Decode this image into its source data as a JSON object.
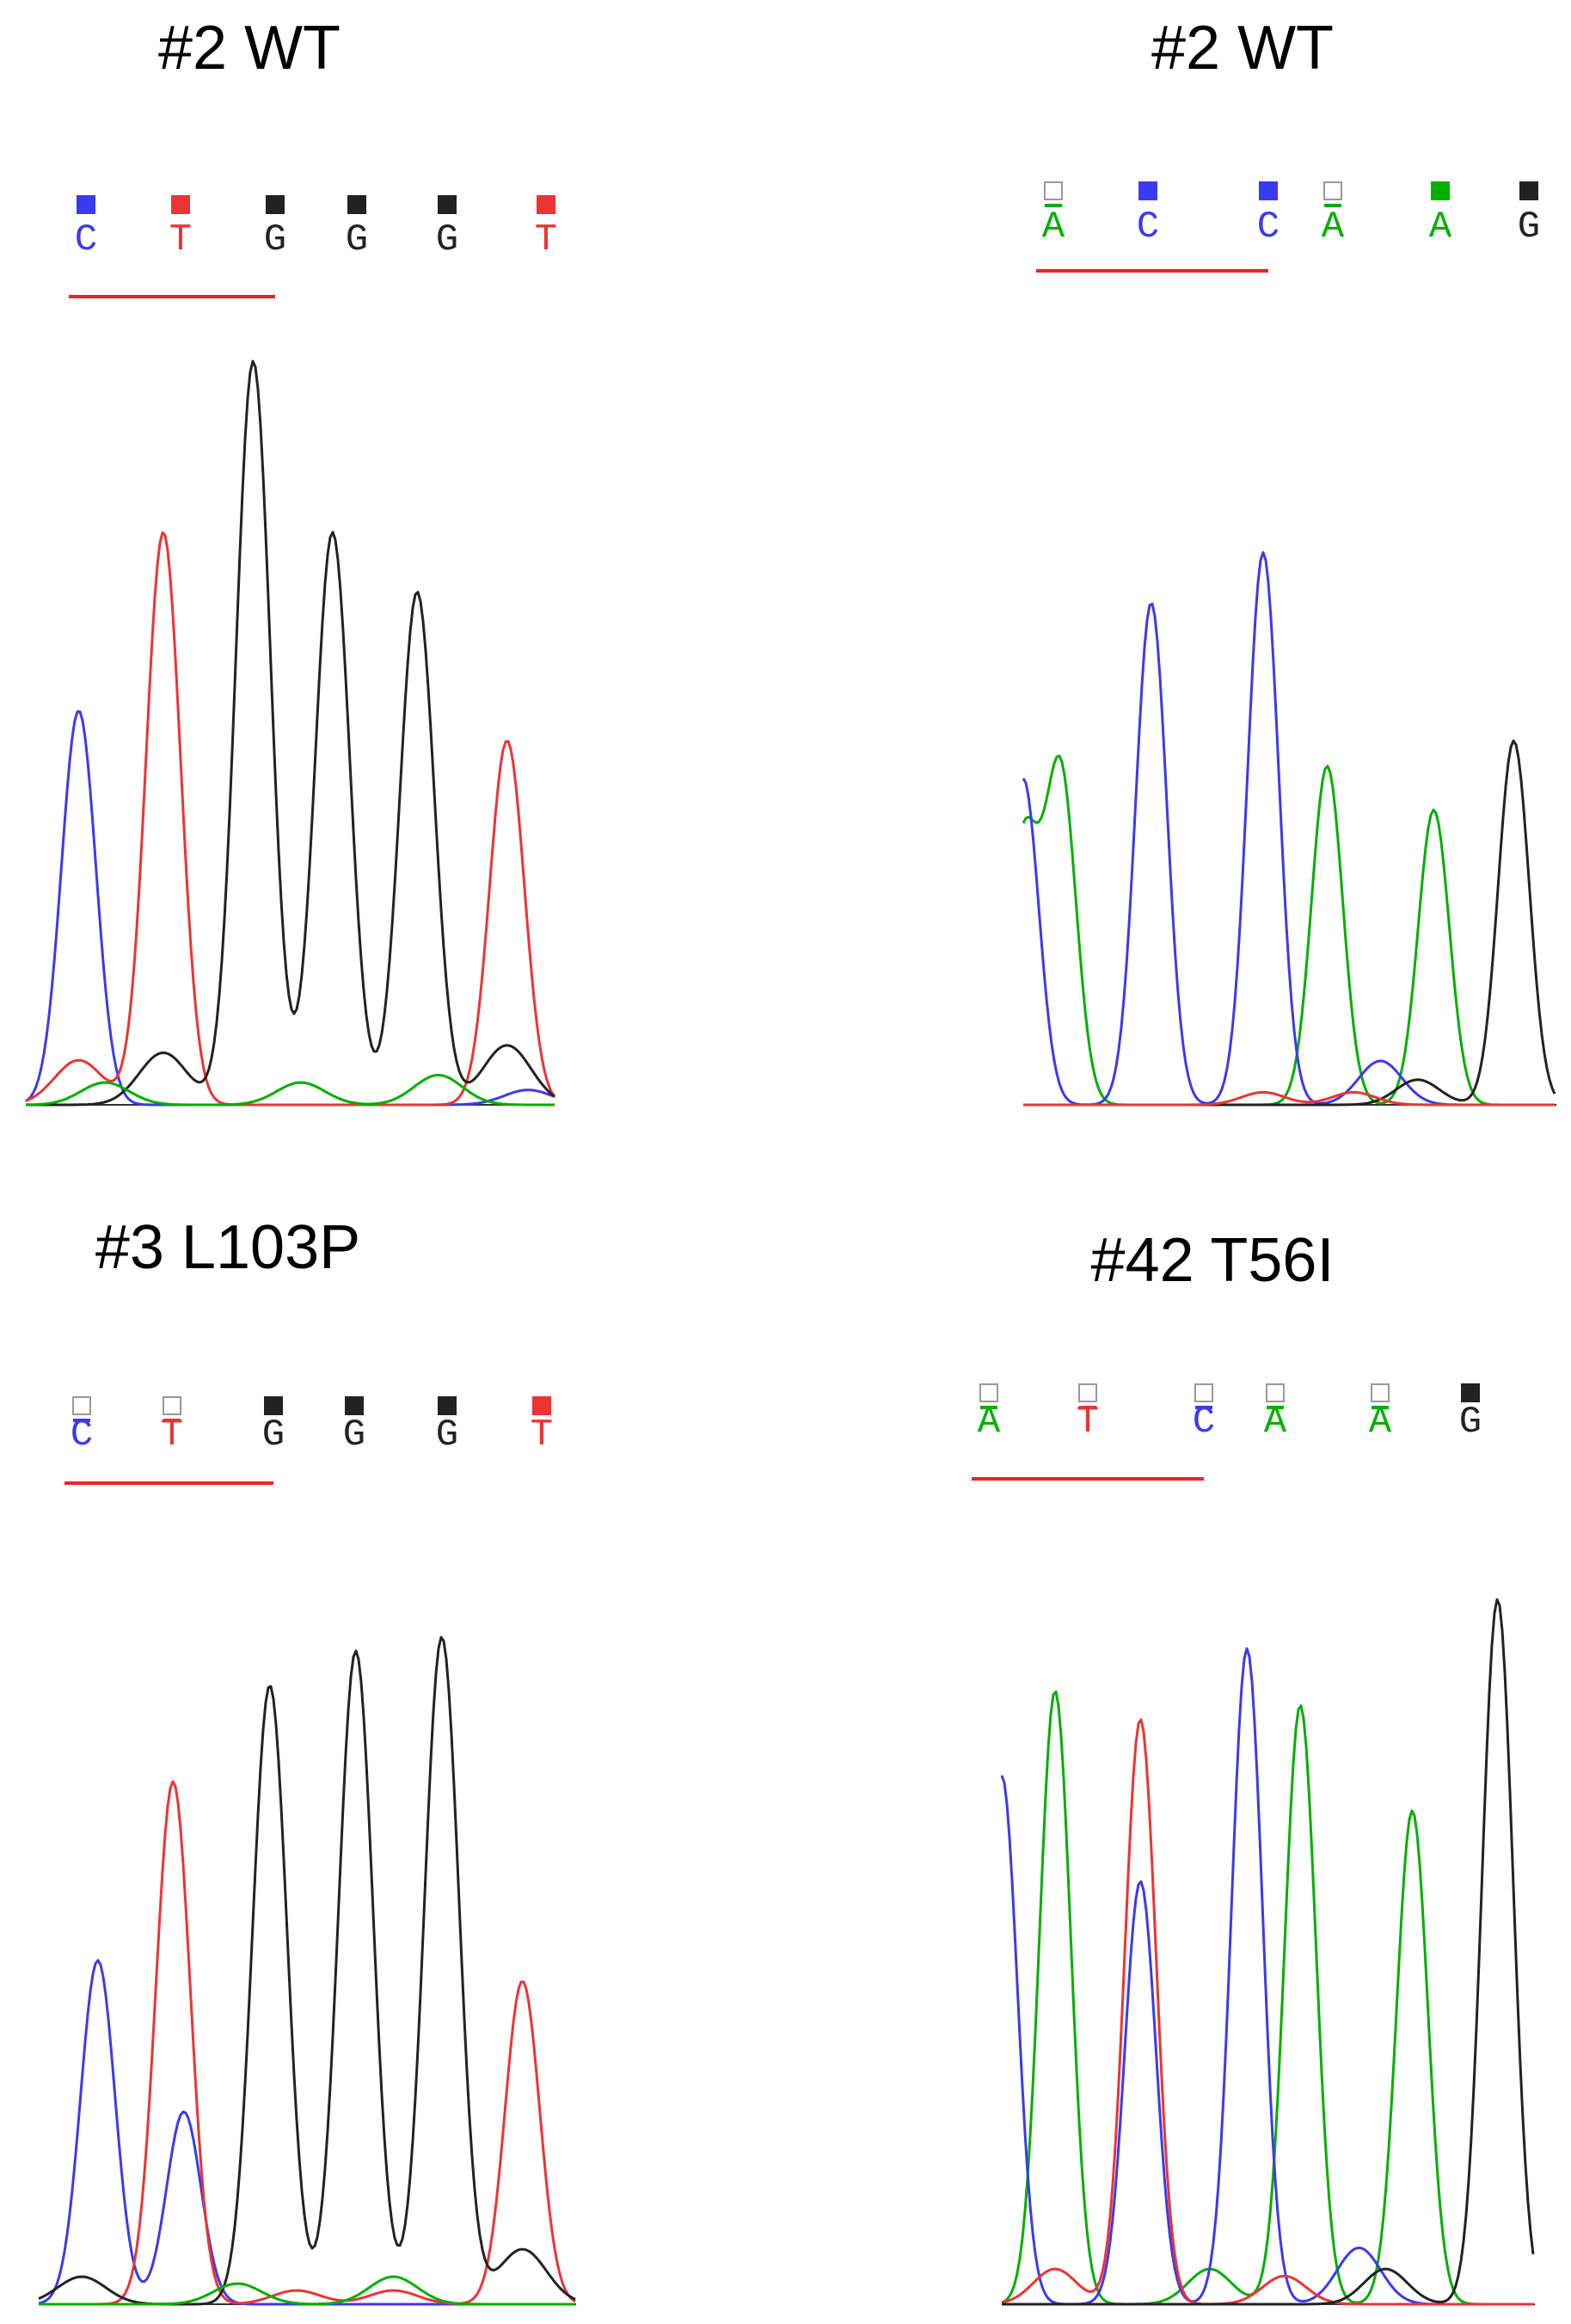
{
  "colors": {
    "A": "#00b000",
    "C": "#3a3af0",
    "G": "#222222",
    "T": "#ee3333",
    "underline": "#ee2222",
    "title": "#000000"
  },
  "chart_data": [
    {
      "type": "line",
      "title": "#2 WT",
      "bases": [
        {
          "base": "C",
          "call": "C",
          "box": "filled"
        },
        {
          "base": "T",
          "call": "T",
          "box": "filled"
        },
        {
          "base": "G",
          "call": "G",
          "box": "filled"
        },
        {
          "base": "G",
          "call": "G",
          "box": "filled"
        },
        {
          "base": "G",
          "call": "G",
          "box": "filled"
        },
        {
          "base": "T",
          "call": "T",
          "box": "filled"
        }
      ],
      "underline_bases": [
        0,
        2
      ],
      "series": [
        {
          "name": "C",
          "peaks": [
            {
              "pos": 0.1,
              "height": 0.53
            }
          ],
          "baseline": [
            {
              "pos": 0.95,
              "height": 0.02
            }
          ]
        },
        {
          "name": "T",
          "peaks": [
            {
              "pos": 0.26,
              "height": 0.77
            },
            {
              "pos": 0.91,
              "height": 0.49
            }
          ],
          "baseline": [
            {
              "pos": 0.1,
              "height": 0.06
            }
          ]
        },
        {
          "name": "G",
          "peaks": [
            {
              "pos": 0.43,
              "height": 1.0
            },
            {
              "pos": 0.58,
              "height": 0.77
            },
            {
              "pos": 0.74,
              "height": 0.69
            }
          ],
          "baseline": [
            {
              "pos": 0.26,
              "height": 0.07
            },
            {
              "pos": 0.91,
              "height": 0.08
            }
          ]
        },
        {
          "name": "A",
          "peaks": [],
          "baseline": [
            {
              "pos": 0.15,
              "height": 0.03
            },
            {
              "pos": 0.52,
              "height": 0.03
            },
            {
              "pos": 0.78,
              "height": 0.04
            }
          ]
        }
      ]
    },
    {
      "type": "line",
      "title": "#2 WT",
      "bases": [
        {
          "base": "A",
          "call": "A",
          "box": "open"
        },
        {
          "base": "C",
          "call": "C",
          "box": "filled"
        },
        {
          "base": "C",
          "call": "C",
          "box": "filled"
        },
        {
          "base": "A",
          "call": "A",
          "box": "open"
        },
        {
          "base": "A",
          "call": "A",
          "box": "filled"
        },
        {
          "base": "G",
          "call": "G",
          "box": "filled"
        }
      ],
      "underline_bases": [
        0,
        2
      ],
      "series": [
        {
          "name": "A",
          "peaks": [
            {
              "pos": 0.07,
              "height": 0.53
            },
            {
              "pos": 0.57,
              "height": 0.54
            },
            {
              "pos": 0.77,
              "height": 0.47
            }
          ],
          "baseline": [
            {
              "pos": 0.0,
              "height": 0.42
            }
          ]
        },
        {
          "name": "C",
          "peaks": [
            {
              "pos": 0.24,
              "height": 0.8
            },
            {
              "pos": 0.45,
              "height": 0.88
            }
          ],
          "baseline": [
            {
              "pos": 0.0,
              "height": 0.52
            },
            {
              "pos": 0.67,
              "height": 0.07
            }
          ]
        },
        {
          "name": "G",
          "peaks": [
            {
              "pos": 0.92,
              "height": 0.58
            }
          ],
          "baseline": [
            {
              "pos": 0.74,
              "height": 0.04
            }
          ]
        },
        {
          "name": "T",
          "peaks": [],
          "baseline": [
            {
              "pos": 0.45,
              "height": 0.02
            },
            {
              "pos": 0.62,
              "height": 0.02
            }
          ]
        }
      ]
    },
    {
      "type": "line",
      "title": "#3 L103P",
      "bases": [
        {
          "base": "C",
          "call": "C",
          "box": "open"
        },
        {
          "base": "T",
          "call": "T",
          "box": "open"
        },
        {
          "base": "G",
          "call": "G",
          "box": "filled"
        },
        {
          "base": "G",
          "call": "G",
          "box": "filled"
        },
        {
          "base": "G",
          "call": "G",
          "box": "filled"
        },
        {
          "base": "T",
          "call": "T",
          "box": "filled"
        }
      ],
      "underline_bases": [
        0,
        2
      ],
      "series": [
        {
          "name": "C",
          "peaks": [
            {
              "pos": 0.11,
              "height": 0.5
            },
            {
              "pos": 0.27,
              "height": 0.28
            }
          ],
          "baseline": []
        },
        {
          "name": "T",
          "peaks": [
            {
              "pos": 0.25,
              "height": 0.76
            },
            {
              "pos": 0.9,
              "height": 0.47
            }
          ],
          "baseline": [
            {
              "pos": 0.48,
              "height": 0.02
            },
            {
              "pos": 0.66,
              "height": 0.02
            }
          ]
        },
        {
          "name": "G",
          "peaks": [
            {
              "pos": 0.43,
              "height": 0.9
            },
            {
              "pos": 0.59,
              "height": 0.95
            },
            {
              "pos": 0.75,
              "height": 0.97
            }
          ],
          "baseline": [
            {
              "pos": 0.08,
              "height": 0.04
            },
            {
              "pos": 0.9,
              "height": 0.08
            }
          ]
        },
        {
          "name": "A",
          "peaks": [],
          "baseline": [
            {
              "pos": 0.37,
              "height": 0.03
            },
            {
              "pos": 0.66,
              "height": 0.04
            }
          ]
        }
      ]
    },
    {
      "type": "line",
      "title": "#42 T56I",
      "bases": [
        {
          "base": "A",
          "call": "A",
          "box": "open"
        },
        {
          "base": "T",
          "call": "T",
          "box": "open"
        },
        {
          "base": "C",
          "call": "C",
          "box": "open"
        },
        {
          "base": "A",
          "call": "A",
          "box": "open"
        },
        {
          "base": "A",
          "call": "A",
          "box": "open"
        },
        {
          "base": "G",
          "call": "G",
          "box": "filled"
        }
      ],
      "underline_bases": [
        0,
        2
      ],
      "series": [
        {
          "name": "A",
          "peaks": [
            {
              "pos": 0.1,
              "height": 0.87
            },
            {
              "pos": 0.56,
              "height": 0.85
            },
            {
              "pos": 0.77,
              "height": 0.7
            }
          ],
          "baseline": [
            {
              "pos": 0.39,
              "height": 0.05
            }
          ]
        },
        {
          "name": "C",
          "peaks": [
            {
              "pos": 0.26,
              "height": 0.6
            },
            {
              "pos": 0.46,
              "height": 0.93
            }
          ],
          "baseline": [
            {
              "pos": 0.0,
              "height": 0.75
            },
            {
              "pos": 0.67,
              "height": 0.08
            }
          ]
        },
        {
          "name": "T",
          "peaks": [
            {
              "pos": 0.26,
              "height": 0.83
            }
          ],
          "baseline": [
            {
              "pos": 0.1,
              "height": 0.05
            },
            {
              "pos": 0.53,
              "height": 0.04
            }
          ]
        },
        {
          "name": "G",
          "peaks": [
            {
              "pos": 0.93,
              "height": 1.0
            }
          ],
          "baseline": [
            {
              "pos": 0.72,
              "height": 0.05
            }
          ]
        }
      ]
    }
  ]
}
